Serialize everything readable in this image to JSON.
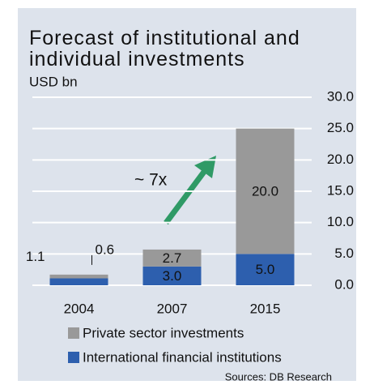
{
  "chart_data": {
    "type": "bar",
    "stacked": true,
    "title": "Forecast of institutional and individual investments",
    "y_label": "USD bn",
    "annotation": "~ 7x",
    "source": "Sources: DB Research",
    "categories": [
      "2004",
      "2007",
      "2015"
    ],
    "series": [
      {
        "name": "International financial institutions",
        "color": "#2d5fae",
        "values": [
          1.1,
          3.0,
          5.0
        ],
        "value_labels": [
          "1.1",
          "3.0",
          "5.0"
        ]
      },
      {
        "name": "Private sector investments",
        "color": "#999999",
        "values": [
          0.6,
          2.7,
          20.0
        ],
        "value_labels": [
          "0.6",
          "2.7",
          "20.0"
        ]
      }
    ],
    "ylim": [
      0,
      30
    ],
    "yticks": [
      {
        "value": 0,
        "label": "0.0"
      },
      {
        "value": 5,
        "label": "5.0"
      },
      {
        "value": 10,
        "label": "10.0"
      },
      {
        "value": 15,
        "label": "15.0"
      },
      {
        "value": 20,
        "label": "20.0"
      },
      {
        "value": 25,
        "label": "25.0"
      },
      {
        "value": 30,
        "label": "30.0"
      }
    ],
    "grid": true
  }
}
